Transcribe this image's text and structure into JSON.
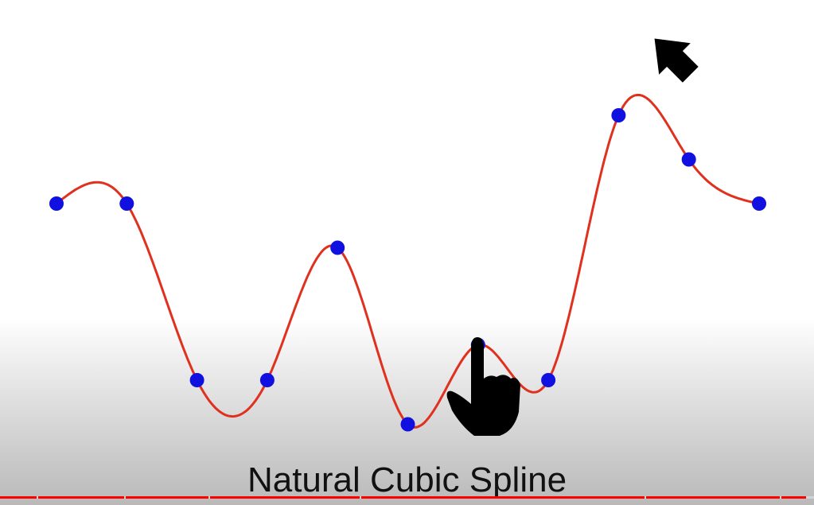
{
  "caption": "Natural Cubic Spline",
  "colors": {
    "curve": "#e0301e",
    "knot": "#1010e0",
    "icon": "#000000",
    "progress": "#ff0000"
  },
  "icons": [
    "arrow-pointing-down-left-icon",
    "hand-pointing-up-icon"
  ],
  "knots": [
    {
      "x": 0,
      "y": 0
    },
    {
      "x": 1,
      "y": 0
    },
    {
      "x": 2,
      "y": -2
    },
    {
      "x": 3,
      "y": -2
    },
    {
      "x": 4,
      "y": -0.5
    },
    {
      "x": 5,
      "y": -2.5
    },
    {
      "x": 6,
      "y": -1.6
    },
    {
      "x": 7,
      "y": -2
    },
    {
      "x": 8,
      "y": 1
    },
    {
      "x": 9,
      "y": 0.5
    },
    {
      "x": 10,
      "y": 0
    }
  ],
  "progress": {
    "fraction": 0.99
  }
}
